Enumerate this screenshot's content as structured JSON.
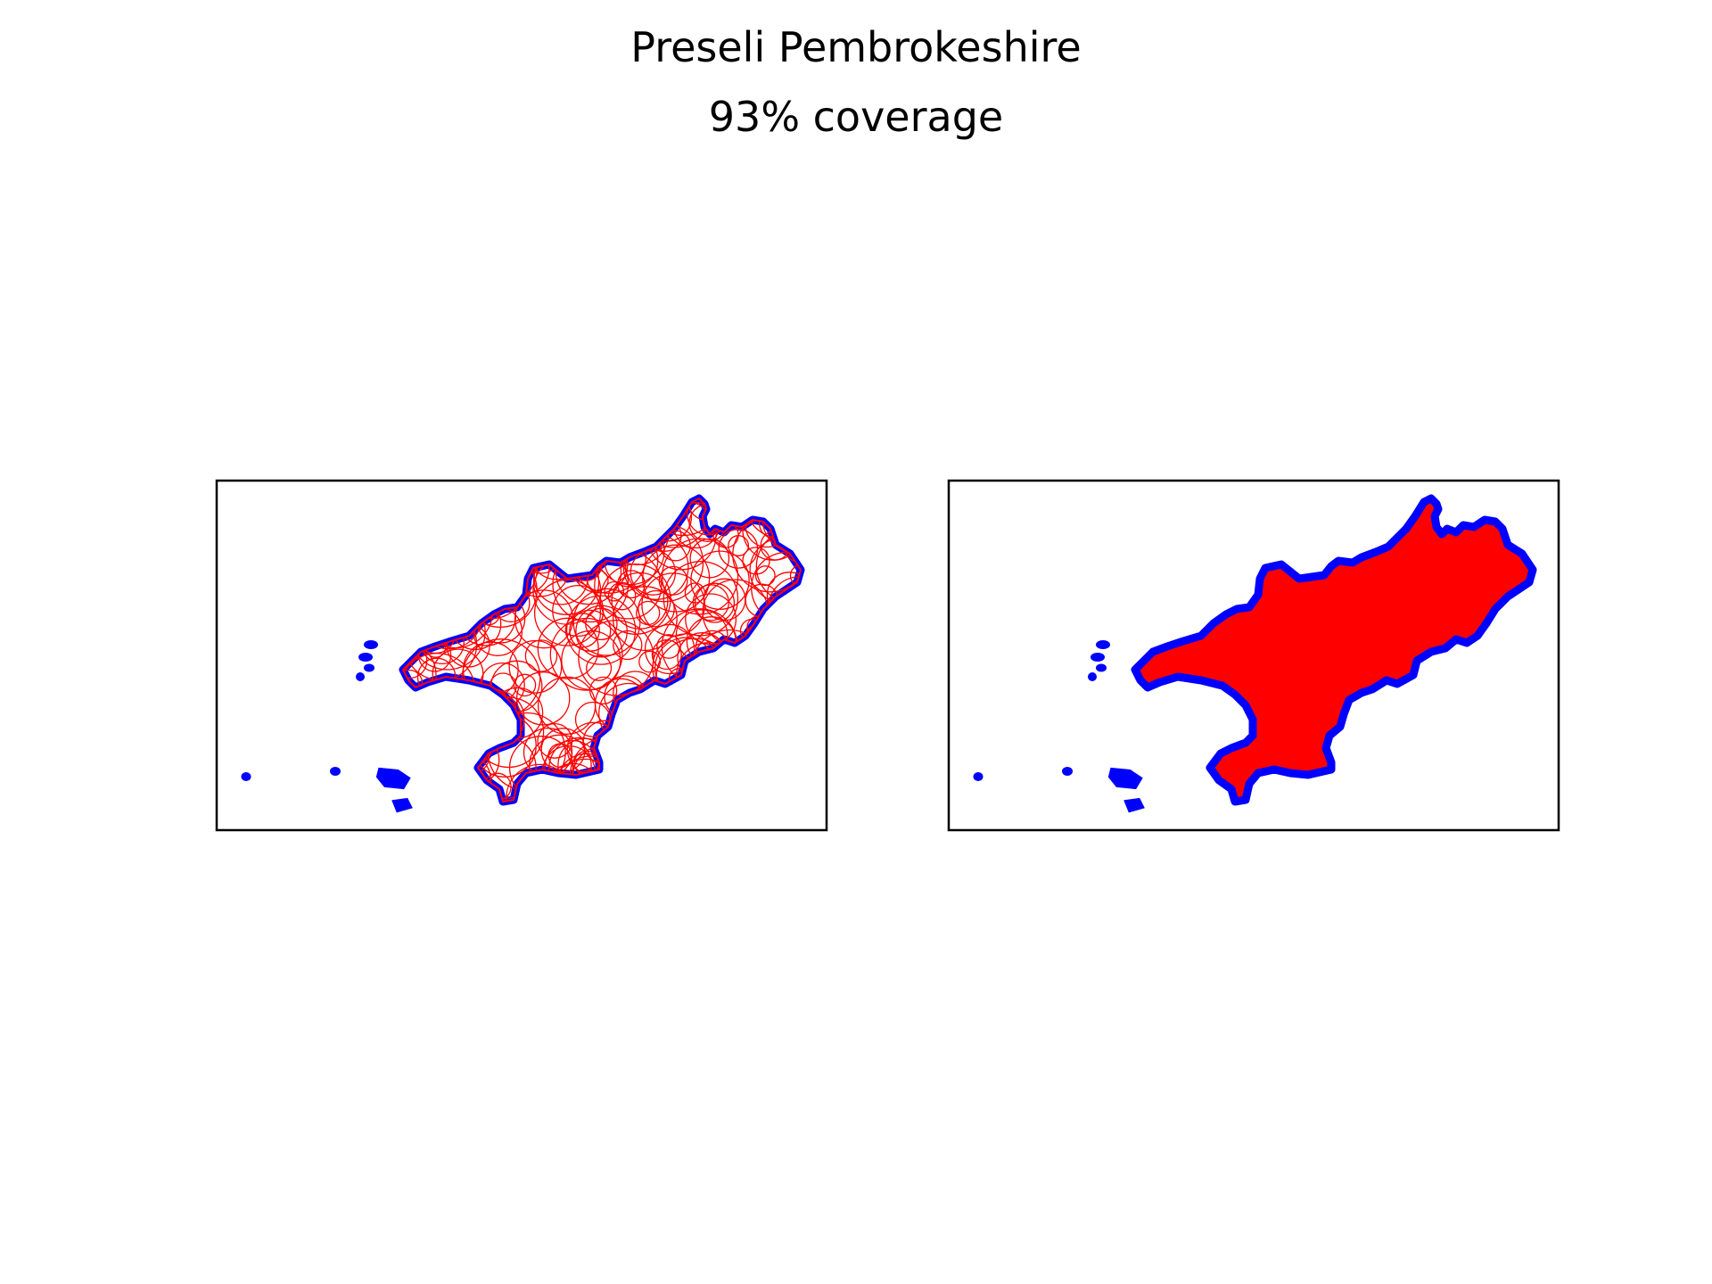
{
  "figure": {
    "title": "Preseli Pembrokeshire",
    "subtitle": "93% coverage",
    "coverage_percent": 93
  },
  "colors": {
    "outline": "#0000ff",
    "coverage": "#ff0000",
    "frame": "#000000",
    "background": "#ffffff"
  },
  "panels": [
    {
      "name": "circle-coverage-panel",
      "style": "circles"
    },
    {
      "name": "filled-coverage-panel",
      "style": "filled"
    }
  ]
}
